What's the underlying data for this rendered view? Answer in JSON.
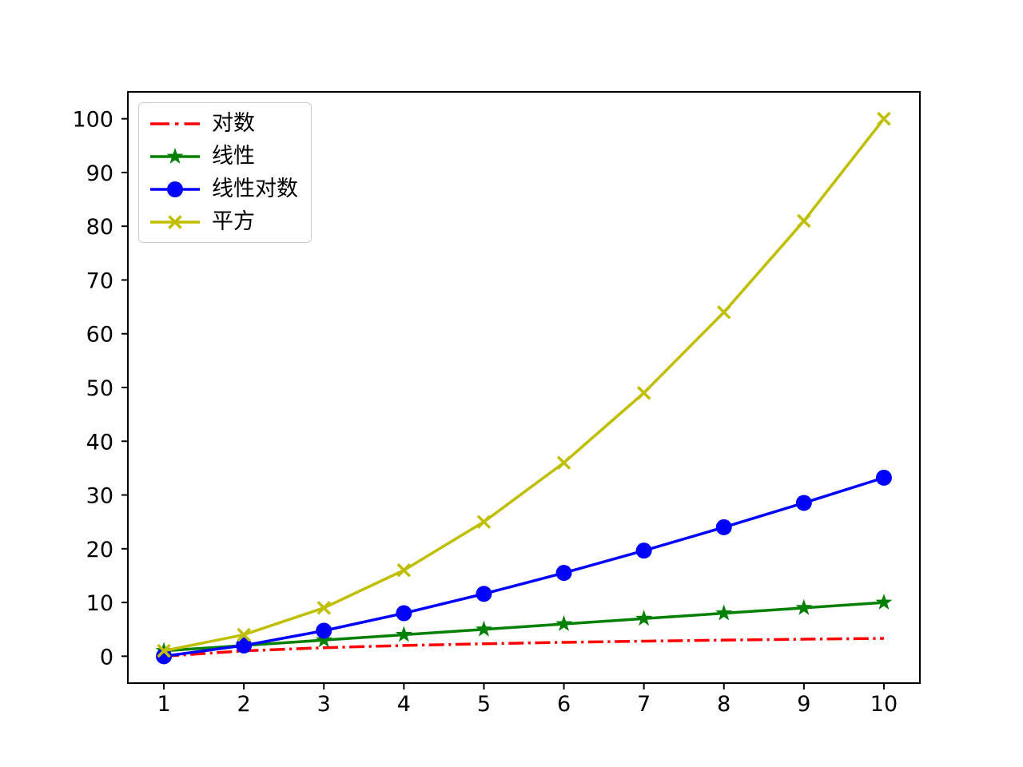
{
  "figure": {
    "background": "#ffffff",
    "axes": {
      "xlim": [
        0.55,
        10.45
      ],
      "ylim": [
        -5,
        105
      ],
      "xticks": [
        1,
        2,
        3,
        4,
        5,
        6,
        7,
        8,
        9,
        10
      ],
      "yticks": [
        0,
        10,
        20,
        30,
        40,
        50,
        60,
        70,
        80,
        90,
        100
      ],
      "spine_color": "#000000",
      "tick_color": "#000000"
    }
  },
  "chart_data": {
    "type": "line",
    "title": "",
    "xlabel": "",
    "ylabel": "",
    "x": [
      1,
      2,
      3,
      4,
      5,
      6,
      7,
      8,
      9,
      10
    ],
    "xlim": [
      0.55,
      10.45
    ],
    "ylim": [
      -5,
      105
    ],
    "grid": false,
    "legend_position": "upper-left",
    "series": [
      {
        "name": "对数",
        "color": "#ff0000",
        "linestyle": "dashdot",
        "marker": "none",
        "values": [
          0,
          1,
          1.585,
          2,
          2.322,
          2.585,
          2.807,
          3,
          3.17,
          3.322
        ]
      },
      {
        "name": "线性",
        "color": "#008000",
        "linestyle": "solid",
        "marker": "star",
        "values": [
          1,
          2,
          3,
          4,
          5,
          6,
          7,
          8,
          9,
          10
        ]
      },
      {
        "name": "线性对数",
        "color": "#0000ff",
        "linestyle": "solid",
        "marker": "circle",
        "values": [
          0,
          2,
          4.755,
          8,
          11.61,
          15.51,
          19.651,
          24,
          28.529,
          33.219
        ]
      },
      {
        "name": "平方",
        "color": "#bfbf00",
        "linestyle": "solid",
        "marker": "x",
        "values": [
          1,
          4,
          9,
          16,
          25,
          36,
          49,
          64,
          81,
          100
        ]
      }
    ]
  }
}
